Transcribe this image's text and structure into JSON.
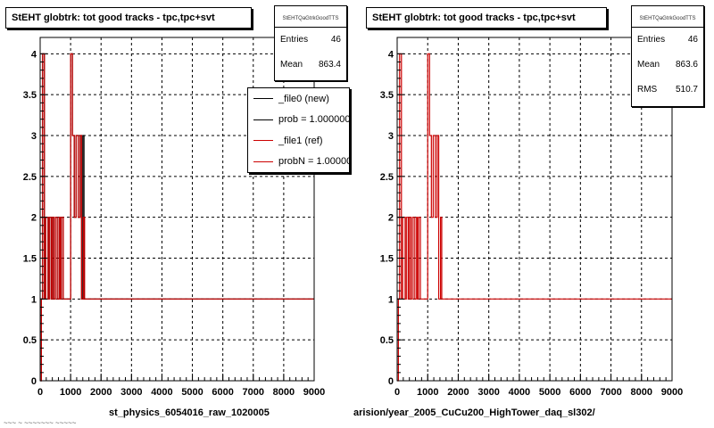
{
  "chart_data": [
    {
      "type": "histogram",
      "title": "StEHT globtrk: tot good tracks - tpc,tpc+svt",
      "xlabel": "st_physics_6054016_raw_1020005",
      "ylabel": "",
      "xlim": [
        0,
        9000
      ],
      "ylim": [
        0,
        4.2
      ],
      "xticks": [
        0,
        1000,
        2000,
        3000,
        4000,
        5000,
        6000,
        7000,
        8000,
        9000
      ],
      "yticks": [
        0,
        0.5,
        1,
        1.5,
        2,
        2.5,
        3,
        3.5,
        4
      ],
      "grid": true,
      "stats": {
        "name": "StEHTQaGtrkGoodTTS",
        "rows": [
          {
            "label": "Entries",
            "value": "46"
          },
          {
            "label": "Mean",
            "value": "863.4"
          }
        ]
      },
      "legend": {
        "placement": "top-right",
        "entries": [
          {
            "label": "_file0 (new)",
            "color": "#000000"
          },
          {
            "label": "prob = 1.000000",
            "color": "#000000"
          },
          {
            "label": "_file1 (ref)",
            "color": "#cc0000"
          },
          {
            "label": "probN = 1.000000",
            "color": "#cc0000"
          }
        ]
      },
      "series": [
        {
          "name": "_file0 (new)",
          "color": "#000000",
          "points": [
            [
              40,
              1
            ],
            [
              80,
              4
            ],
            [
              140,
              1
            ],
            [
              180,
              2
            ],
            [
              260,
              1
            ],
            [
              300,
              2
            ],
            [
              360,
              1
            ],
            [
              400,
              2
            ],
            [
              450,
              1
            ],
            [
              500,
              2
            ],
            [
              560,
              1
            ],
            [
              620,
              2
            ],
            [
              660,
              1
            ],
            [
              700,
              2
            ],
            [
              760,
              1
            ],
            [
              1000,
              4
            ],
            [
              1060,
              3
            ],
            [
              1120,
              2
            ],
            [
              1180,
              3
            ],
            [
              1250,
              2
            ],
            [
              1310,
              3
            ],
            [
              1360,
              1
            ],
            [
              1400,
              3
            ],
            [
              1440,
              1
            ],
            [
              1510,
              1
            ],
            [
              1700,
              1
            ],
            [
              1900,
              1
            ],
            [
              2120,
              1
            ],
            [
              2380,
              1
            ]
          ]
        },
        {
          "name": "_file1 (ref)",
          "color": "#cc0000",
          "points": [
            [
              40,
              1
            ],
            [
              80,
              4
            ],
            [
              140,
              1
            ],
            [
              180,
              2
            ],
            [
              260,
              1
            ],
            [
              300,
              2
            ],
            [
              360,
              1
            ],
            [
              400,
              2
            ],
            [
              450,
              1
            ],
            [
              500,
              2
            ],
            [
              560,
              1
            ],
            [
              620,
              2
            ],
            [
              660,
              1
            ],
            [
              700,
              2
            ],
            [
              760,
              1
            ],
            [
              1000,
              4
            ],
            [
              1060,
              3
            ],
            [
              1120,
              2
            ],
            [
              1180,
              3
            ],
            [
              1250,
              2
            ],
            [
              1310,
              3
            ],
            [
              1360,
              1
            ],
            [
              1420,
              2
            ],
            [
              1460,
              1
            ],
            [
              1520,
              1
            ],
            [
              1720,
              1
            ],
            [
              1860,
              1
            ],
            [
              2340,
              1
            ],
            [
              2390,
              1
            ]
          ]
        }
      ]
    },
    {
      "type": "histogram",
      "title": "StEHT globtrk: tot good tracks - tpc,tpc+svt",
      "xlabel": "arision/year_2005_CuCu200_HighTower_daq_sl302/",
      "ylabel": "",
      "xlim": [
        0,
        9000
      ],
      "ylim": [
        0,
        4.2
      ],
      "xticks": [
        0,
        1000,
        2000,
        3000,
        4000,
        5000,
        6000,
        7000,
        8000,
        9000
      ],
      "yticks": [
        0,
        0.5,
        1,
        1.5,
        2,
        2.5,
        3,
        3.5,
        4
      ],
      "grid": true,
      "stats": {
        "name": "StEHTQaGtrkGoodTTS",
        "rows": [
          {
            "label": "Entries",
            "value": "46"
          },
          {
            "label": "Mean",
            "value": "863.6"
          },
          {
            "label": "RMS",
            "value": "510.7"
          }
        ]
      },
      "series": [
        {
          "name": "_file1 (ref)",
          "color": "#cc0000",
          "points": [
            [
              40,
              1
            ],
            [
              80,
              4
            ],
            [
              140,
              1
            ],
            [
              180,
              2
            ],
            [
              260,
              1
            ],
            [
              300,
              2
            ],
            [
              360,
              1
            ],
            [
              400,
              2
            ],
            [
              450,
              1
            ],
            [
              500,
              2
            ],
            [
              560,
              1
            ],
            [
              620,
              2
            ],
            [
              660,
              1
            ],
            [
              700,
              2
            ],
            [
              760,
              1
            ],
            [
              1000,
              4
            ],
            [
              1060,
              3
            ],
            [
              1120,
              2
            ],
            [
              1180,
              3
            ],
            [
              1250,
              2
            ],
            [
              1310,
              3
            ],
            [
              1360,
              1
            ],
            [
              1420,
              2
            ],
            [
              1460,
              1
            ],
            [
              1520,
              1
            ],
            [
              1720,
              1
            ],
            [
              1860,
              1
            ],
            [
              2340,
              1
            ],
            [
              2390,
              1
            ]
          ]
        }
      ]
    }
  ],
  "footer_text": "~~~ ~ ~~~~~~~ ~~~~~"
}
